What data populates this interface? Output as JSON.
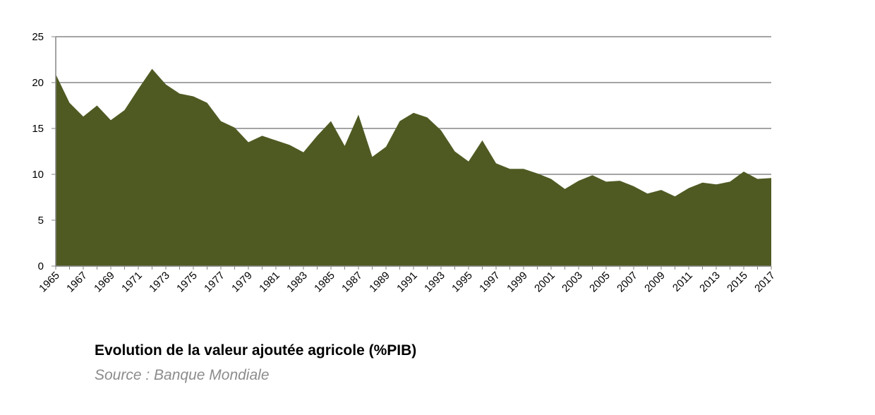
{
  "chart_data": {
    "type": "area",
    "title": "Evolution de la valeur ajoutée agricole (%PIB)",
    "source": "Source : Banque Mondiale",
    "color": "#4e5a22",
    "grid": true,
    "categories": [
      "1965",
      null,
      "1967",
      null,
      "1969",
      null,
      "1971",
      null,
      "1973",
      null,
      "1975",
      null,
      "1977",
      null,
      "1979",
      null,
      "1981",
      null,
      "1983",
      null,
      "1985",
      null,
      "1987",
      null,
      "1989",
      null,
      "1991",
      null,
      "1993",
      null,
      "1995",
      null,
      "1997",
      null,
      "1999",
      null,
      "2001",
      null,
      "2003",
      null,
      "2005",
      null,
      "2007",
      null,
      "2009",
      null,
      "2011",
      null,
      "2013",
      null,
      "2015",
      null,
      "2017"
    ],
    "values": [
      20.9,
      17.8,
      16.3,
      17.5,
      15.9,
      17.0,
      19.3,
      21.5,
      19.8,
      18.8,
      18.5,
      17.8,
      15.8,
      15.1,
      13.5,
      14.2,
      13.7,
      13.2,
      12.4,
      14.2,
      15.8,
      13.1,
      16.5,
      11.9,
      13.0,
      15.8,
      16.7,
      16.2,
      14.8,
      12.5,
      11.4,
      13.7,
      11.2,
      10.6,
      10.6,
      10.1,
      9.5,
      8.4,
      9.3,
      9.9,
      9.2,
      9.3,
      8.7,
      7.9,
      8.3,
      7.6,
      8.5,
      9.1,
      8.9,
      9.2,
      10.3,
      9.5,
      9.6
    ],
    "ylim": [
      0,
      25
    ],
    "yticks": [
      0,
      5,
      10,
      15,
      20,
      25
    ]
  }
}
